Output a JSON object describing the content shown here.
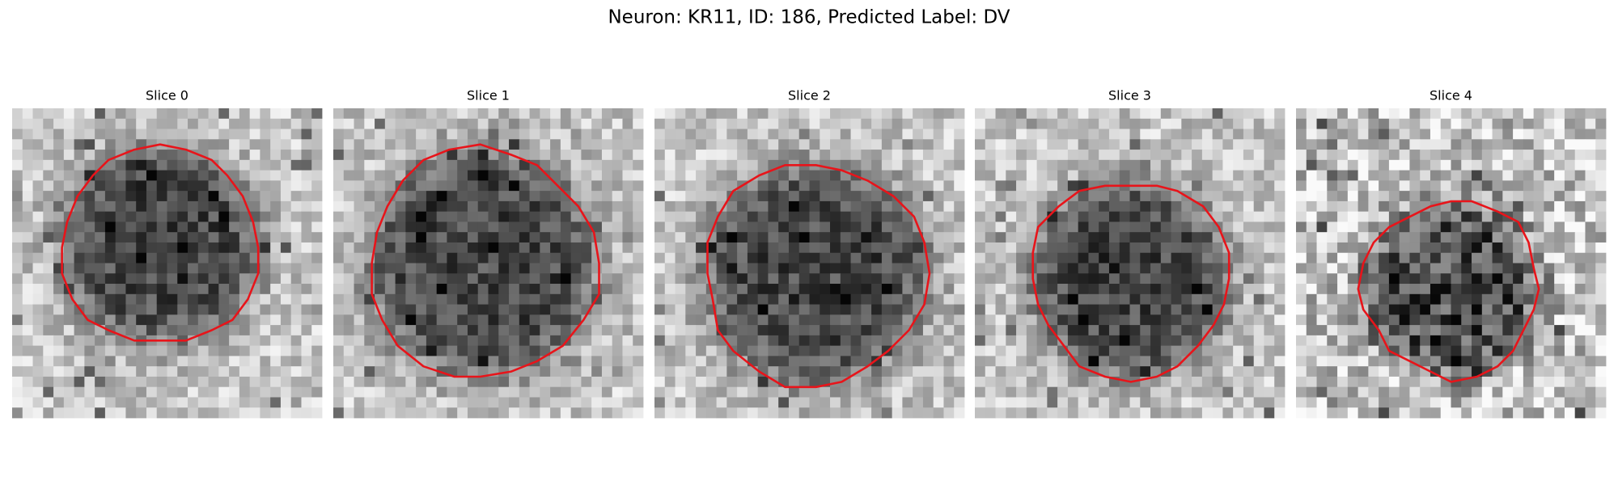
{
  "header": {
    "title": "Neuron: KR11, ID: 186, Predicted Label: DV"
  },
  "panels": [
    {
      "title": "Slice 0"
    },
    {
      "title": "Slice 1"
    },
    {
      "title": "Slice 2"
    },
    {
      "title": "Slice 3"
    },
    {
      "title": "Slice 4"
    }
  ]
}
